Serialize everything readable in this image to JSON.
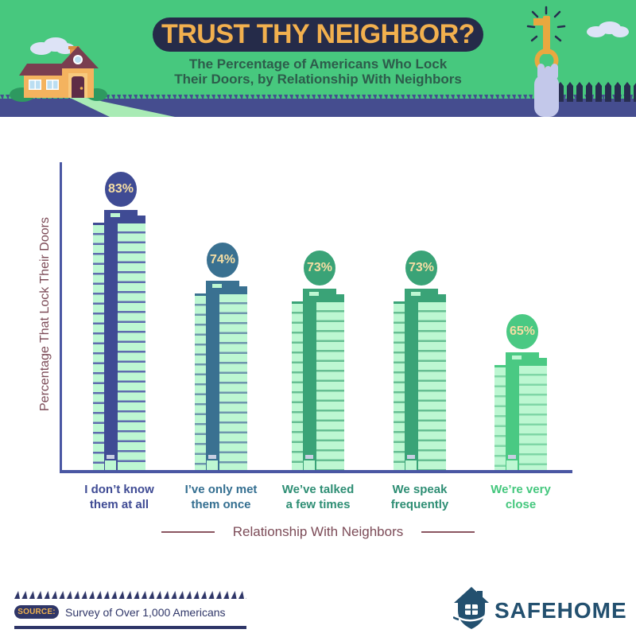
{
  "header": {
    "title": "TRUST THY NEIGHBOR?",
    "subtitle_line1": "The Percentage of Americans Who Lock",
    "subtitle_line2": "Their Doors, by Relationship With Neighbors",
    "colors": {
      "background_green": "#47C87E",
      "banner_navy": "#252B49",
      "title_gold": "#F2B04E",
      "subtitle_green": "#2D5C4B",
      "ground_navy": "#454D8F"
    }
  },
  "chart_data": {
    "type": "bar",
    "title": "",
    "xlabel": "Relationship With Neighbors",
    "ylabel": "Percentage That Lock Their Doors",
    "categories": [
      [
        "I don’t know",
        "them at all"
      ],
      [
        "I’ve only met",
        "them once"
      ],
      [
        "We’ve talked",
        "a few times"
      ],
      [
        "We speak",
        "frequently"
      ],
      [
        "We’re very",
        "close"
      ]
    ],
    "values": [
      83,
      74,
      73,
      73,
      65
    ],
    "value_labels": [
      "83%",
      "74%",
      "73%",
      "73%",
      "65%"
    ],
    "bar_colors": [
      "#3F4B94",
      "#3A7191",
      "#3AA377",
      "#3AA377",
      "#4AC983"
    ],
    "stripe_colors": [
      "#5E6BAE",
      "#6E96AD",
      "#66BE92",
      "#66BE92",
      "#7FD6A6"
    ],
    "label_colors": [
      "#3F4B94",
      "#336E90",
      "#2E8E74",
      "#2E8E74",
      "#44C77D"
    ],
    "building_light": "#BDF7D2",
    "bubble_text_color": "#F5DEA4",
    "door_slot_color": "#C8CFE2",
    "axis_color": "#4A57A3",
    "axis_label_color": "#7C4B57",
    "ylim_implied": [
      50,
      100
    ],
    "grid": false,
    "legend": "none"
  },
  "footer": {
    "source_badge": "SOURCE:",
    "source_text": "Survey of Over 1,000 Americans",
    "brand": "SAFEHOME",
    "colors": {
      "navy": "#2F3668",
      "badge_text_gold": "#F0B24F",
      "brand_blue": "#23506F"
    }
  }
}
